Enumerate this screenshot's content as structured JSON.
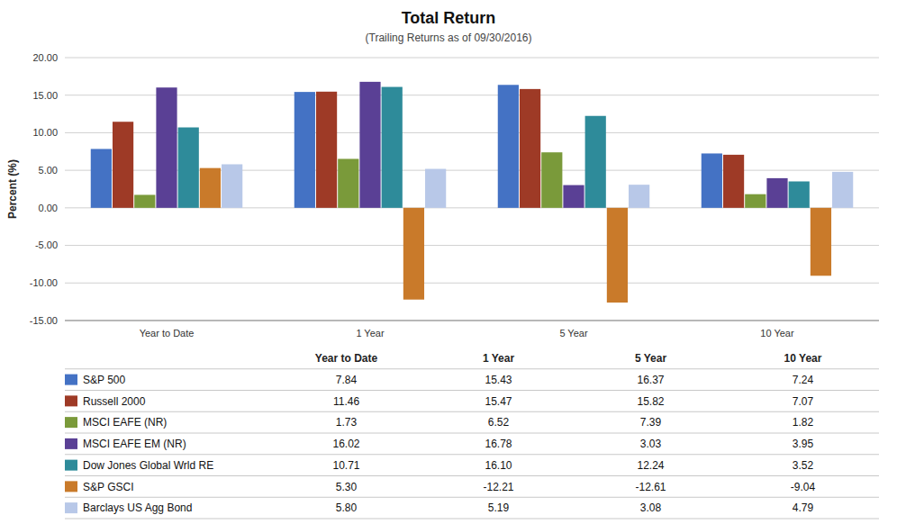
{
  "chart_data": {
    "type": "bar",
    "title": "Total Return",
    "subtitle": "(Trailing Returns as of 09/30/2016)",
    "categories": [
      "Year to Date",
      "1 Year",
      "5 Year",
      "10 Year"
    ],
    "series": [
      {
        "name": "S&P 500",
        "color": "#4472C4",
        "values": [
          7.84,
          15.43,
          16.37,
          7.24
        ],
        "value_labels": [
          "7.84",
          "15.43",
          "16.37",
          "7.24"
        ]
      },
      {
        "name": "Russell 2000",
        "color": "#9E3A26",
        "values": [
          11.46,
          15.47,
          15.82,
          7.07
        ],
        "value_labels": [
          "11.46",
          "15.47",
          "15.82",
          "7.07"
        ]
      },
      {
        "name": "MSCI EAFE (NR)",
        "color": "#7A9A3A",
        "values": [
          1.73,
          6.52,
          7.39,
          1.82
        ],
        "value_labels": [
          "1.73",
          "6.52",
          "7.39",
          "1.82"
        ]
      },
      {
        "name": "MSCI EAFE EM (NR)",
        "color": "#5A4095",
        "values": [
          16.02,
          16.78,
          3.03,
          3.95
        ],
        "value_labels": [
          "16.02",
          "16.78",
          "3.03",
          "3.95"
        ]
      },
      {
        "name": "Dow Jones Global Wrld RE",
        "color": "#2E8B9A",
        "values": [
          10.71,
          16.1,
          12.24,
          3.52
        ],
        "value_labels": [
          "10.71",
          "16.10",
          "12.24",
          "3.52"
        ]
      },
      {
        "name": "S&P GSCI",
        "color": "#C97A2A",
        "values": [
          5.3,
          -12.21,
          -12.61,
          -9.04
        ],
        "value_labels": [
          "5.30",
          "-12.21",
          "-12.61",
          "-9.04"
        ]
      },
      {
        "name": "Barclays US Agg Bond",
        "color": "#B8C8E8",
        "values": [
          5.8,
          5.19,
          3.08,
          4.79
        ],
        "value_labels": [
          "5.80",
          "5.19",
          "3.08",
          "4.79"
        ]
      }
    ],
    "ylabel": "Percent (%)",
    "ylim": [
      -15.0,
      20.0
    ],
    "yticks": [
      {
        "value": -15.0,
        "label": "-15.00"
      },
      {
        "value": -10.0,
        "label": "-10.00"
      },
      {
        "value": -5.0,
        "label": "-5.00"
      },
      {
        "value": 0.0,
        "label": "0.00"
      },
      {
        "value": 5.0,
        "label": "5.00"
      },
      {
        "value": 10.0,
        "label": "10.00"
      },
      {
        "value": 15.0,
        "label": "15.00"
      },
      {
        "value": 20.0,
        "label": "20.00"
      }
    ],
    "grid": true,
    "legend": "bottom"
  }
}
